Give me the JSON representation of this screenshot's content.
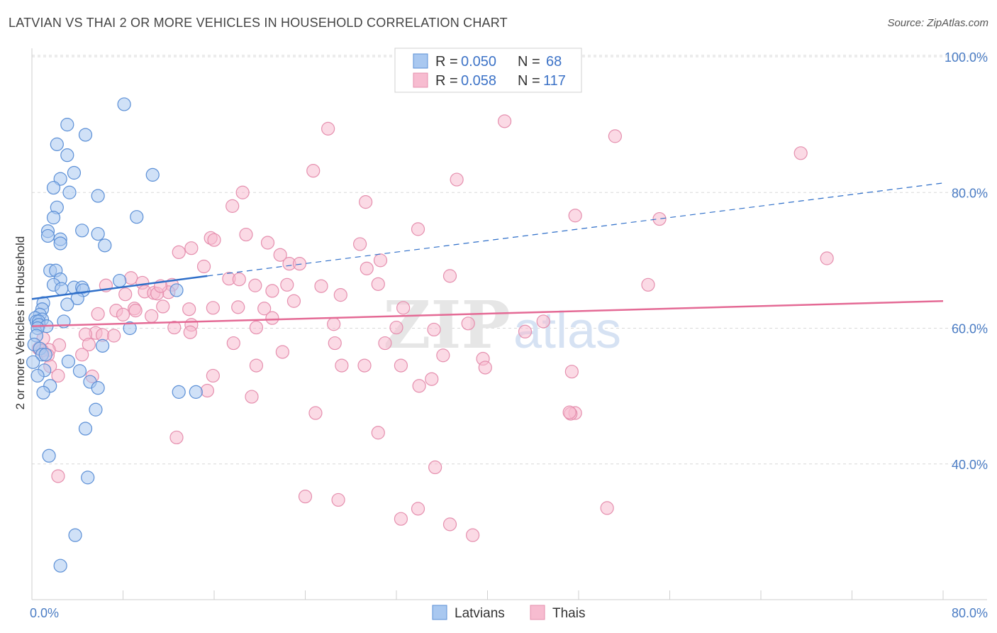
{
  "header": {
    "title": "LATVIAN VS THAI 2 OR MORE VEHICLES IN HOUSEHOLD CORRELATION CHART",
    "source": "Source: ZipAtlas.com"
  },
  "colors": {
    "blue_fill": "#a9c8f0",
    "blue_stroke": "#5b8fd6",
    "blue_line": "#2f6fc9",
    "pink_fill": "#f7bcd0",
    "pink_stroke": "#e58fae",
    "pink_line": "#e46a95",
    "grid": "#d8d8d8",
    "tick_text": "#4a7cc4"
  },
  "watermark": {
    "zip": "ZIP",
    "atlas": "atlas"
  },
  "chart_data": {
    "type": "scatter",
    "title": "LATVIAN VS THAI 2 OR MORE VEHICLES IN HOUSEHOLD CORRELATION CHART",
    "xlabel": "",
    "ylabel": "2 or more Vehicles in Household",
    "xlim": [
      0,
      80
    ],
    "ylim": [
      20,
      100
    ],
    "x_tick_labels": [
      "0.0%",
      "80.0%"
    ],
    "y_ticks": [
      40,
      60,
      80,
      100
    ],
    "y_tick_labels": [
      "40.0%",
      "60.0%",
      "80.0%",
      "100.0%"
    ],
    "grid": true,
    "legend_position": "top-center",
    "legend": [
      {
        "name": "Latvians",
        "r_label": "R =",
        "r_value": "0.050",
        "n_label": "N =",
        "n_value": "68"
      },
      {
        "name": "Thais",
        "r_label": "R =",
        "r_value": "0.058",
        "n_label": "N =",
        "n_value": "117"
      }
    ],
    "series": [
      {
        "name": "Latvians",
        "trend": {
          "x0": 0,
          "y0": 64.3,
          "x1": 15.4,
          "y1": 67.7,
          "dash_to_x": 80,
          "dash_to_y": 81.4
        },
        "points": [
          [
            8.1,
            93.0
          ],
          [
            3.1,
            90.0
          ],
          [
            4.7,
            88.5
          ],
          [
            2.2,
            87.1
          ],
          [
            3.1,
            85.5
          ],
          [
            3.7,
            82.9
          ],
          [
            10.6,
            82.6
          ],
          [
            2.5,
            82.0
          ],
          [
            1.9,
            80.7
          ],
          [
            3.3,
            80.0
          ],
          [
            5.8,
            79.5
          ],
          [
            2.2,
            77.8
          ],
          [
            1.9,
            76.3
          ],
          [
            9.2,
            76.4
          ],
          [
            4.4,
            74.4
          ],
          [
            1.4,
            74.3
          ],
          [
            1.4,
            73.6
          ],
          [
            5.8,
            73.9
          ],
          [
            2.5,
            73.1
          ],
          [
            2.5,
            72.5
          ],
          [
            6.4,
            72.2
          ],
          [
            1.6,
            68.5
          ],
          [
            2.1,
            68.5
          ],
          [
            2.5,
            67.2
          ],
          [
            7.7,
            67.0
          ],
          [
            1.9,
            66.4
          ],
          [
            3.7,
            66.0
          ],
          [
            4.4,
            66.0
          ],
          [
            2.6,
            65.8
          ],
          [
            4.5,
            65.6
          ],
          [
            12.7,
            65.6
          ],
          [
            4.0,
            64.4
          ],
          [
            1.0,
            63.7
          ],
          [
            3.1,
            63.5
          ],
          [
            0.9,
            62.8
          ],
          [
            0.7,
            62.0
          ],
          [
            0.3,
            61.5
          ],
          [
            0.9,
            61.3
          ],
          [
            0.4,
            61.0
          ],
          [
            0.6,
            61.0
          ],
          [
            2.8,
            61.0
          ],
          [
            0.6,
            60.5
          ],
          [
            1.3,
            60.3
          ],
          [
            8.6,
            60.0
          ],
          [
            0.5,
            60.0
          ],
          [
            0.4,
            58.9
          ],
          [
            0.2,
            57.6
          ],
          [
            6.2,
            57.4
          ],
          [
            0.7,
            57.0
          ],
          [
            0.9,
            56.1
          ],
          [
            1.2,
            56.1
          ],
          [
            3.2,
            55.1
          ],
          [
            0.1,
            55.0
          ],
          [
            4.2,
            53.7
          ],
          [
            1.1,
            53.8
          ],
          [
            5.1,
            52.1
          ],
          [
            5.8,
            51.2
          ],
          [
            1.6,
            51.5
          ],
          [
            12.9,
            50.6
          ],
          [
            14.4,
            50.6
          ],
          [
            1.0,
            50.5
          ],
          [
            5.6,
            48.0
          ],
          [
            4.7,
            45.2
          ],
          [
            1.5,
            41.2
          ],
          [
            4.9,
            38.0
          ],
          [
            3.8,
            29.5
          ],
          [
            2.5,
            25.0
          ],
          [
            0.5,
            53.0
          ]
        ]
      },
      {
        "name": "Thais",
        "trend": {
          "x0": 0,
          "y0": 60.3,
          "x1": 80,
          "y1": 64.0
        },
        "points": [
          [
            41.5,
            90.5
          ],
          [
            26.0,
            89.4
          ],
          [
            51.2,
            88.3
          ],
          [
            67.5,
            85.8
          ],
          [
            24.7,
            83.2
          ],
          [
            37.3,
            81.9
          ],
          [
            18.5,
            80.0
          ],
          [
            29.3,
            78.6
          ],
          [
            17.6,
            78.0
          ],
          [
            47.7,
            76.6
          ],
          [
            55.1,
            76.1
          ],
          [
            33.9,
            74.6
          ],
          [
            15.7,
            73.3
          ],
          [
            16.0,
            73.0
          ],
          [
            18.8,
            73.8
          ],
          [
            20.7,
            72.6
          ],
          [
            28.8,
            72.4
          ],
          [
            14.0,
            71.8
          ],
          [
            12.9,
            71.2
          ],
          [
            21.8,
            70.8
          ],
          [
            30.6,
            70.0
          ],
          [
            22.6,
            69.5
          ],
          [
            23.5,
            69.5
          ],
          [
            15.1,
            69.1
          ],
          [
            29.4,
            68.8
          ],
          [
            36.7,
            67.7
          ],
          [
            8.7,
            67.4
          ],
          [
            17.3,
            67.3
          ],
          [
            18.2,
            67.2
          ],
          [
            9.7,
            66.7
          ],
          [
            22.4,
            66.4
          ],
          [
            12.3,
            66.4
          ],
          [
            19.6,
            66.3
          ],
          [
            6.5,
            66.3
          ],
          [
            25.4,
            66.2
          ],
          [
            30.4,
            66.5
          ],
          [
            54.1,
            66.4
          ],
          [
            9.9,
            65.4
          ],
          [
            10.7,
            65.2
          ],
          [
            12.0,
            65.3
          ],
          [
            11.0,
            65.1
          ],
          [
            8.2,
            65.0
          ],
          [
            27.1,
            64.9
          ],
          [
            23.0,
            64.0
          ],
          [
            11.5,
            63.2
          ],
          [
            18.1,
            63.1
          ],
          [
            32.6,
            63.0
          ],
          [
            15.9,
            63.0
          ],
          [
            9.0,
            62.9
          ],
          [
            20.4,
            62.9
          ],
          [
            9.1,
            62.6
          ],
          [
            7.4,
            62.6
          ],
          [
            13.8,
            62.8
          ],
          [
            8.0,
            62.0
          ],
          [
            5.8,
            62.1
          ],
          [
            21.1,
            61.5
          ],
          [
            10.5,
            61.8
          ],
          [
            44.9,
            61.0
          ],
          [
            38.3,
            60.7
          ],
          [
            26.5,
            60.6
          ],
          [
            14.0,
            60.5
          ],
          [
            12.5,
            60.1
          ],
          [
            19.7,
            60.1
          ],
          [
            32.0,
            60.1
          ],
          [
            35.3,
            59.8
          ],
          [
            43.3,
            59.5
          ],
          [
            13.9,
            59.4
          ],
          [
            5.6,
            59.3
          ],
          [
            6.2,
            59.0
          ],
          [
            4.7,
            59.1
          ],
          [
            7.2,
            58.9
          ],
          [
            1.0,
            58.5
          ],
          [
            17.7,
            57.8
          ],
          [
            26.6,
            57.8
          ],
          [
            31.0,
            57.8
          ],
          [
            5.0,
            57.6
          ],
          [
            2.4,
            57.5
          ],
          [
            0.6,
            57.0
          ],
          [
            1.5,
            56.8
          ],
          [
            0.9,
            56.7
          ],
          [
            22.0,
            56.5
          ],
          [
            4.4,
            56.1
          ],
          [
            36.1,
            56.0
          ],
          [
            39.6,
            55.5
          ],
          [
            1.4,
            56.0
          ],
          [
            19.7,
            54.5
          ],
          [
            27.2,
            54.5
          ],
          [
            29.2,
            54.5
          ],
          [
            32.4,
            54.5
          ],
          [
            39.8,
            54.2
          ],
          [
            1.6,
            54.4
          ],
          [
            15.9,
            53.0
          ],
          [
            5.3,
            52.9
          ],
          [
            2.3,
            53.0
          ],
          [
            35.1,
            52.5
          ],
          [
            47.4,
            53.6
          ],
          [
            34.0,
            51.5
          ],
          [
            15.4,
            50.8
          ],
          [
            19.3,
            49.9
          ],
          [
            24.9,
            47.5
          ],
          [
            47.7,
            47.5
          ],
          [
            47.3,
            47.4
          ],
          [
            30.4,
            44.6
          ],
          [
            12.7,
            43.9
          ],
          [
            35.4,
            39.5
          ],
          [
            2.3,
            38.2
          ],
          [
            24.0,
            35.2
          ],
          [
            26.9,
            34.7
          ],
          [
            33.9,
            33.4
          ],
          [
            50.5,
            33.5
          ],
          [
            32.4,
            31.9
          ],
          [
            36.7,
            31.1
          ],
          [
            38.7,
            29.5
          ],
          [
            69.8,
            70.3
          ],
          [
            47.2,
            47.6
          ],
          [
            21.1,
            65.5
          ],
          [
            11.3,
            66.2
          ]
        ]
      }
    ]
  }
}
